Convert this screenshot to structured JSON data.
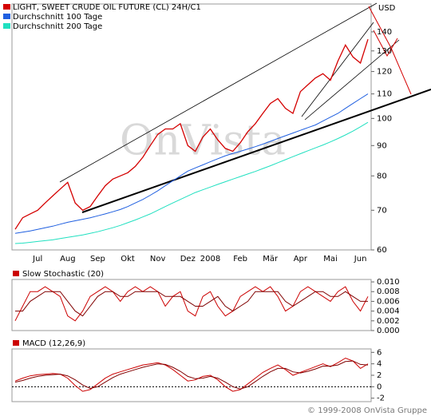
{
  "chart_data": [
    {
      "type": "line",
      "y_label": "USD",
      "watermark": "OnVista",
      "log": true,
      "categories": [
        null,
        null,
        null,
        "Jul",
        null,
        null,
        null,
        "Aug",
        null,
        null,
        null,
        "Sep",
        null,
        null,
        null,
        "Okt",
        null,
        null,
        null,
        "Nov",
        null,
        null,
        null,
        "Dez",
        null,
        null,
        "2008",
        null,
        null,
        null,
        "Feb",
        null,
        null,
        null,
        "Mär",
        null,
        null,
        null,
        "Apr",
        null,
        null,
        null,
        "Mai",
        null,
        null,
        null,
        "Jun",
        null
      ],
      "series": [
        {
          "name": "LIGHT, SWEET CRUDE OIL FUTURE (CL) 24H/C1",
          "color": "#d40000",
          "values": [
            65,
            68,
            69,
            70,
            72,
            74,
            76,
            78,
            72,
            70,
            71,
            74,
            77,
            79,
            80,
            81,
            83,
            86,
            90,
            94,
            96,
            96,
            98,
            90,
            88,
            93,
            96,
            92,
            89,
            88,
            91,
            95,
            98,
            102,
            106,
            108,
            104,
            102,
            111,
            114,
            117,
            119,
            116,
            125,
            133,
            127,
            124,
            136
          ]
        },
        {
          "name": "Durchschnitt 100 Tage",
          "color": "#1f5fe0",
          "values": [
            64,
            64.3,
            64.6,
            65,
            65.4,
            65.8,
            66.3,
            66.8,
            67.2,
            67.6,
            68,
            68.5,
            69,
            69.6,
            70.2,
            71,
            72,
            73,
            74.2,
            75.5,
            77,
            78.5,
            80,
            81.5,
            82.5,
            83.5,
            84.5,
            85.5,
            86.5,
            87.3,
            88,
            88.8,
            89.6,
            90.5,
            91.5,
            92.5,
            93.5,
            94.5,
            95.5,
            96.5,
            97.5,
            99,
            100.5,
            102,
            104,
            106,
            108,
            110
          ]
        },
        {
          "name": "Durchschnitt 200 Tage",
          "color": "#20e0c0",
          "values": [
            61.5,
            61.6,
            61.8,
            62,
            62.2,
            62.4,
            62.7,
            63,
            63.3,
            63.6,
            64,
            64.4,
            64.9,
            65.4,
            66,
            66.7,
            67.4,
            68.2,
            69,
            70,
            71,
            72,
            73,
            74,
            75,
            75.8,
            76.6,
            77.4,
            78.2,
            79,
            79.8,
            80.6,
            81.4,
            82.3,
            83.2,
            84.2,
            85.2,
            86.2,
            87.2,
            88.2,
            89.2,
            90.2,
            91.3,
            92.5,
            93.8,
            95.2,
            96.8,
            98.5
          ]
        }
      ],
      "ylim": [
        60,
        156
      ],
      "yticks": [
        60,
        70,
        80,
        90,
        100,
        110,
        120,
        130,
        140
      ]
    },
    {
      "type": "line",
      "title": "Slow Stochastic (20)",
      "series": [
        {
          "color": "#cc0000",
          "values": [
            0.002,
            0.005,
            0.008,
            0.008,
            0.009,
            0.008,
            0.007,
            0.003,
            0.002,
            0.004,
            0.007,
            0.008,
            0.009,
            0.008,
            0.006,
            0.008,
            0.009,
            0.008,
            0.009,
            0.008,
            0.005,
            0.007,
            0.008,
            0.004,
            0.003,
            0.007,
            0.008,
            0.005,
            0.003,
            0.004,
            0.007,
            0.008,
            0.009,
            0.008,
            0.009,
            0.007,
            0.004,
            0.005,
            0.008,
            0.009,
            0.008,
            0.007,
            0.006,
            0.008,
            0.009,
            0.006,
            0.004,
            0.007
          ]
        },
        {
          "color": "#800000",
          "values": [
            0.004,
            0.004,
            0.006,
            0.007,
            0.008,
            0.008,
            0.008,
            0.006,
            0.004,
            0.003,
            0.005,
            0.007,
            0.008,
            0.008,
            0.007,
            0.007,
            0.008,
            0.008,
            0.008,
            0.008,
            0.007,
            0.007,
            0.007,
            0.006,
            0.005,
            0.005,
            0.006,
            0.007,
            0.005,
            0.004,
            0.005,
            0.006,
            0.008,
            0.008,
            0.008,
            0.008,
            0.006,
            0.005,
            0.006,
            0.007,
            0.008,
            0.008,
            0.007,
            0.007,
            0.008,
            0.007,
            0.006,
            0.006
          ]
        }
      ],
      "ylim": [
        0,
        0.0105
      ],
      "yticks": [
        {
          "value": 0,
          "label": "0.000"
        },
        {
          "value": 0.002,
          "label": "0.002"
        },
        {
          "value": 0.004,
          "label": "0.004"
        },
        {
          "value": 0.006,
          "label": "0.006"
        },
        {
          "value": 0.008,
          "label": "0.008"
        },
        {
          "value": 0.01,
          "label": "0.010"
        }
      ]
    },
    {
      "type": "line",
      "title": "MACD (12,26,9)",
      "zero_line": true,
      "series": [
        {
          "color": "#cc0000",
          "values": [
            1.0,
            1.5,
            1.9,
            2.1,
            2.2,
            2.3,
            2.2,
            1.5,
            0.2,
            -0.8,
            -0.5,
            0.5,
            1.5,
            2.2,
            2.6,
            3.0,
            3.4,
            3.8,
            4.0,
            4.2,
            3.8,
            3.0,
            2.0,
            1.0,
            1.2,
            1.8,
            2.0,
            1.2,
            0,
            -0.8,
            -0.5,
            0.5,
            1.5,
            2.5,
            3.2,
            3.8,
            3.0,
            2.0,
            2.5,
            3.0,
            3.5,
            4.0,
            3.5,
            4.2,
            5.0,
            4.5,
            3.2,
            4.0
          ]
        },
        {
          "color": "#800000",
          "values": [
            0.8,
            1.1,
            1.5,
            1.8,
            2.0,
            2.1,
            2.2,
            1.9,
            1.2,
            0.3,
            -0.3,
            0,
            0.8,
            1.6,
            2.2,
            2.6,
            3.0,
            3.4,
            3.7,
            4.0,
            3.9,
            3.4,
            2.7,
            1.8,
            1.4,
            1.5,
            1.8,
            1.5,
            0.8,
            0,
            -0.4,
            0,
            0.9,
            1.8,
            2.6,
            3.2,
            3.2,
            2.6,
            2.4,
            2.7,
            3.1,
            3.6,
            3.6,
            3.8,
            4.4,
            4.5,
            3.9,
            3.8
          ]
        }
      ],
      "ylim": [
        -2.6,
        6.6
      ],
      "yticks": [
        -2,
        0,
        2,
        4,
        6
      ]
    }
  ],
  "footer": "© 1999-2008 OnVista Gruppe"
}
